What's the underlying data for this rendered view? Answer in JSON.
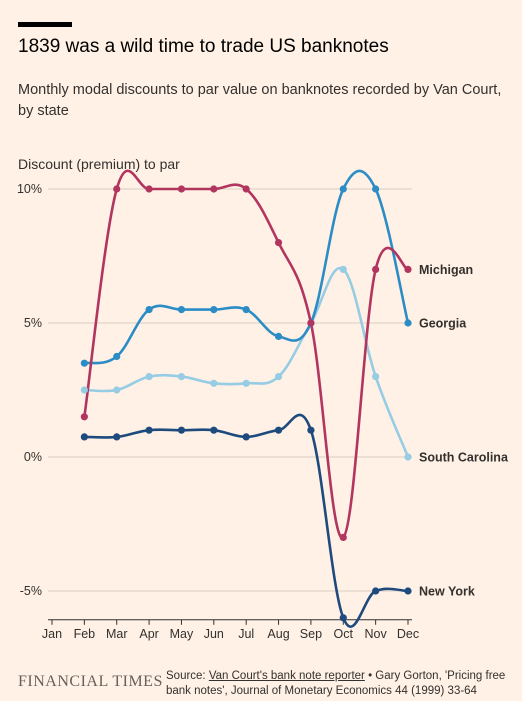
{
  "header": {
    "title": "1839 was a wild time to trade US banknotes",
    "subtitle": "Monthly modal discounts to par value on banknotes recorded by Van Court, by state"
  },
  "footer": {
    "logo": "FINANCIAL TIMES",
    "source_prefix": "Source: ",
    "source_link": "Van Court's bank note reporter",
    "source_rest": " • Gary Gorton, 'Pricing free bank notes', Journal of Monetary Economics 44 (1999) 33-64"
  },
  "chart_data": {
    "type": "line",
    "ylabel": "Discount (premium) to par",
    "xlabel": "",
    "categories": [
      "Jan",
      "Feb",
      "Mar",
      "Apr",
      "May",
      "Jun",
      "Jul",
      "Aug",
      "Sep",
      "Oct",
      "Nov",
      "Dec"
    ],
    "ylim": [
      -6,
      10.5
    ],
    "yticks": [
      -5,
      0,
      5,
      10
    ],
    "ytick_labels": [
      "-5%",
      "0%",
      "5%",
      "10%"
    ],
    "grid": true,
    "legend": "direct labels at line ends (right)",
    "series": [
      {
        "name": "South Carolina",
        "color": "#96cce4",
        "values": [
          null,
          2.5,
          2.5,
          3.0,
          3.0,
          2.75,
          2.75,
          3.0,
          5.0,
          7.0,
          3.0,
          0.0
        ]
      },
      {
        "name": "Georgia",
        "color": "#2b8cc6",
        "values": [
          null,
          3.5,
          3.75,
          5.5,
          5.5,
          5.5,
          5.5,
          4.5,
          5.0,
          10.0,
          10.0,
          5.0
        ]
      },
      {
        "name": "New York",
        "color": "#1e4a7e",
        "values": [
          null,
          0.75,
          0.75,
          1.0,
          1.0,
          1.0,
          0.75,
          1.0,
          1.0,
          -6.0,
          -5.0,
          -5.0
        ]
      },
      {
        "name": "Michigan",
        "color": "#b2355f",
        "values": [
          null,
          1.5,
          10.0,
          10.0,
          10.0,
          10.0,
          10.0,
          8.0,
          5.0,
          -3.0,
          7.0,
          7.0
        ]
      }
    ]
  }
}
